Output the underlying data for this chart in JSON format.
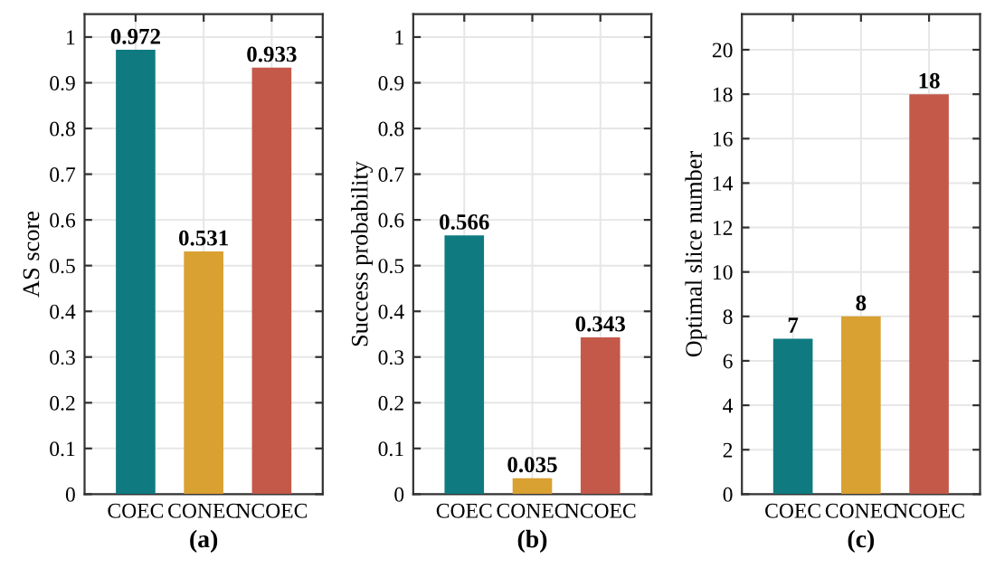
{
  "chart_data": [
    {
      "type": "bar",
      "categories": [
        "COEC",
        "CONEC",
        "NCOEC"
      ],
      "values": [
        0.972,
        0.531,
        0.933
      ],
      "colors": [
        "#0f7b80",
        "#d9a032",
        "#c4594a"
      ],
      "ylabel": "AS score",
      "xlabel": "(a)",
      "ylim": [
        0,
        1.05
      ],
      "yticks": [
        0,
        0.1,
        0.2,
        0.3,
        0.4,
        0.5,
        0.6,
        0.7,
        0.8,
        0.9,
        1
      ],
      "grid": true,
      "data_labels": true
    },
    {
      "type": "bar",
      "categories": [
        "COEC",
        "CONEC",
        "NCOEC"
      ],
      "values": [
        0.566,
        0.035,
        0.343
      ],
      "colors": [
        "#0f7b80",
        "#d9a032",
        "#c4594a"
      ],
      "ylabel": "Success probability",
      "xlabel": "(b)",
      "ylim": [
        0,
        1.05
      ],
      "yticks": [
        0,
        0.1,
        0.2,
        0.3,
        0.4,
        0.5,
        0.6,
        0.7,
        0.8,
        0.9,
        1
      ],
      "grid": true,
      "data_labels": true
    },
    {
      "type": "bar",
      "categories": [
        "COEC",
        "CONEC",
        "NCOEC"
      ],
      "values": [
        7,
        8,
        18
      ],
      "colors": [
        "#0f7b80",
        "#d9a032",
        "#c4594a"
      ],
      "ylabel": "Optimal slice number",
      "xlabel": "(c)",
      "ylim": [
        0,
        21.6
      ],
      "yticks": [
        0,
        2,
        4,
        6,
        8,
        10,
        12,
        14,
        16,
        18,
        20
      ],
      "grid": true,
      "data_labels": true
    }
  ]
}
